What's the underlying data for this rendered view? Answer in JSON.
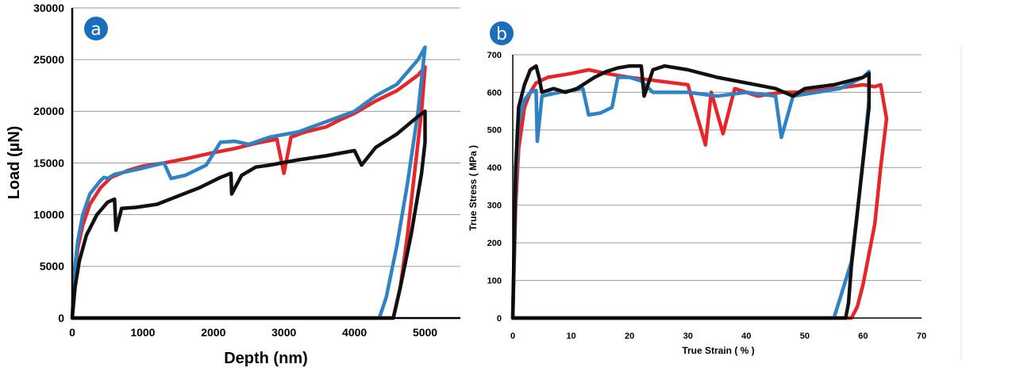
{
  "colors": {
    "black": "#111111",
    "red": "#e8262a",
    "blue": "#2f82c6",
    "badge": "#1a6fbd",
    "grid": "#9a9a9a"
  },
  "chart_data": [
    {
      "type": "line",
      "panel_label": "a",
      "xlabel": "Depth (nm)",
      "ylabel": "Load (µN)",
      "xlim": [
        0,
        5500
      ],
      "ylim": [
        0,
        30000
      ],
      "x_ticks": [
        0,
        1000,
        2000,
        3000,
        4000,
        5000
      ],
      "y_ticks": [
        0,
        5000,
        10000,
        15000,
        20000,
        25000,
        30000
      ],
      "grid": "horizontal",
      "series": [
        {
          "color": "red",
          "points": [
            [
              0,
              0
            ],
            [
              30,
              4000
            ],
            [
              80,
              6800
            ],
            [
              150,
              9000
            ],
            [
              250,
              11000
            ],
            [
              400,
              12600
            ],
            [
              550,
              13600
            ],
            [
              800,
              14300
            ],
            [
              1000,
              14700
            ],
            [
              1300,
              15000
            ],
            [
              1600,
              15400
            ],
            [
              1800,
              15700
            ],
            [
              2000,
              16000
            ],
            [
              2300,
              16400
            ],
            [
              2600,
              16900
            ],
            [
              2900,
              17300
            ],
            [
              3000,
              14000
            ],
            [
              3100,
              17500
            ],
            [
              3300,
              18000
            ],
            [
              3600,
              18500
            ],
            [
              3800,
              19200
            ],
            [
              4000,
              19800
            ],
            [
              4300,
              21000
            ],
            [
              4600,
              22000
            ],
            [
              4900,
              23500
            ],
            [
              5000,
              24300
            ],
            [
              4950,
              20000
            ],
            [
              4850,
              14000
            ],
            [
              4750,
              8000
            ],
            [
              4650,
              3000
            ],
            [
              4550,
              0
            ],
            [
              0,
              0
            ]
          ]
        },
        {
          "color": "blue",
          "points": [
            [
              0,
              0
            ],
            [
              30,
              4500
            ],
            [
              80,
              7500
            ],
            [
              150,
              10000
            ],
            [
              250,
              12000
            ],
            [
              400,
              13300
            ],
            [
              450,
              13600
            ],
            [
              500,
              13500
            ],
            [
              600,
              13900
            ],
            [
              800,
              14200
            ],
            [
              1000,
              14500
            ],
            [
              1300,
              15000
            ],
            [
              1400,
              13500
            ],
            [
              1600,
              13800
            ],
            [
              1900,
              14800
            ],
            [
              2100,
              17000
            ],
            [
              2300,
              17100
            ],
            [
              2500,
              16800
            ],
            [
              2800,
              17500
            ],
            [
              3200,
              18000
            ],
            [
              3600,
              19000
            ],
            [
              4000,
              20000
            ],
            [
              4300,
              21500
            ],
            [
              4600,
              22600
            ],
            [
              4900,
              25000
            ],
            [
              5000,
              26200
            ],
            [
              4900,
              20000
            ],
            [
              4750,
              13000
            ],
            [
              4600,
              7000
            ],
            [
              4450,
              2000
            ],
            [
              4350,
              0
            ],
            [
              0,
              0
            ]
          ]
        },
        {
          "color": "black",
          "points": [
            [
              0,
              0
            ],
            [
              40,
              3000
            ],
            [
              100,
              5500
            ],
            [
              200,
              8000
            ],
            [
              350,
              10000
            ],
            [
              500,
              11200
            ],
            [
              600,
              11500
            ],
            [
              620,
              8500
            ],
            [
              700,
              10600
            ],
            [
              900,
              10700
            ],
            [
              1200,
              11000
            ],
            [
              1500,
              11800
            ],
            [
              1800,
              12600
            ],
            [
              2100,
              13600
            ],
            [
              2250,
              14000
            ],
            [
              2260,
              12000
            ],
            [
              2400,
              13800
            ],
            [
              2600,
              14600
            ],
            [
              2800,
              14800
            ],
            [
              3200,
              15300
            ],
            [
              3600,
              15700
            ],
            [
              4000,
              16200
            ],
            [
              4100,
              14800
            ],
            [
              4300,
              16500
            ],
            [
              4600,
              17800
            ],
            [
              4900,
              19500
            ],
            [
              5000,
              20000
            ],
            [
              5000,
              17000
            ],
            [
              4950,
              14000
            ],
            [
              4800,
              8000
            ],
            [
              4650,
              3000
            ],
            [
              4550,
              0
            ],
            [
              0,
              0
            ]
          ]
        }
      ]
    },
    {
      "type": "line",
      "panel_label": "b",
      "xlabel": "True Strain ( % )",
      "ylabel": "True Stress ( MPa )",
      "xlim": [
        0,
        70
      ],
      "ylim": [
        0,
        700
      ],
      "x_ticks": [
        0,
        10,
        20,
        30,
        40,
        50,
        60,
        70
      ],
      "y_ticks": [
        0,
        100,
        200,
        300,
        400,
        500,
        600,
        700
      ],
      "grid": "horizontal",
      "series": [
        {
          "color": "red",
          "points": [
            [
              0,
              0
            ],
            [
              0.5,
              300
            ],
            [
              1,
              450
            ],
            [
              2,
              560
            ],
            [
              3,
              600
            ],
            [
              4,
              625
            ],
            [
              6,
              640
            ],
            [
              10,
              650
            ],
            [
              13,
              660
            ],
            [
              16,
              650
            ],
            [
              20,
              640
            ],
            [
              25,
              630
            ],
            [
              30,
              620
            ],
            [
              33,
              460
            ],
            [
              34,
              600
            ],
            [
              36,
              490
            ],
            [
              38,
              610
            ],
            [
              42,
              590
            ],
            [
              46,
              600
            ],
            [
              50,
              600
            ],
            [
              55,
              610
            ],
            [
              60,
              620
            ],
            [
              62,
              615
            ],
            [
              63,
              620
            ],
            [
              64,
              530
            ],
            [
              63,
              400
            ],
            [
              62,
              250
            ],
            [
              60,
              90
            ],
            [
              59,
              30
            ],
            [
              58,
              0
            ],
            [
              0,
              0
            ]
          ]
        },
        {
          "color": "blue",
          "points": [
            [
              0,
              0
            ],
            [
              0.5,
              350
            ],
            [
              1,
              520
            ],
            [
              2,
              580
            ],
            [
              3,
              600
            ],
            [
              4,
              605
            ],
            [
              4.2,
              470
            ],
            [
              5,
              590
            ],
            [
              8,
              600
            ],
            [
              10,
              605
            ],
            [
              12,
              610
            ],
            [
              13,
              540
            ],
            [
              15,
              545
            ],
            [
              17,
              560
            ],
            [
              18,
              640
            ],
            [
              20,
              640
            ],
            [
              22,
              630
            ],
            [
              24,
              600
            ],
            [
              30,
              600
            ],
            [
              35,
              590
            ],
            [
              40,
              600
            ],
            [
              45,
              590
            ],
            [
              46,
              480
            ],
            [
              48,
              590
            ],
            [
              52,
              600
            ],
            [
              56,
              610
            ],
            [
              60,
              640
            ],
            [
              61,
              655
            ],
            [
              61,
              580
            ],
            [
              60,
              420
            ],
            [
              59,
              280
            ],
            [
              58,
              150
            ],
            [
              56,
              50
            ],
            [
              55,
              0
            ],
            [
              0,
              0
            ]
          ]
        },
        {
          "color": "black",
          "points": [
            [
              0,
              0
            ],
            [
              0.5,
              400
            ],
            [
              1,
              560
            ],
            [
              2,
              620
            ],
            [
              3,
              660
            ],
            [
              4,
              670
            ],
            [
              4.5,
              640
            ],
            [
              5,
              600
            ],
            [
              7,
              610
            ],
            [
              9,
              600
            ],
            [
              11,
              610
            ],
            [
              12,
              620
            ],
            [
              14,
              640
            ],
            [
              16,
              655
            ],
            [
              18,
              665
            ],
            [
              20,
              670
            ],
            [
              22,
              670
            ],
            [
              22.5,
              590
            ],
            [
              24,
              660
            ],
            [
              26,
              670
            ],
            [
              30,
              660
            ],
            [
              35,
              640
            ],
            [
              40,
              625
            ],
            [
              45,
              610
            ],
            [
              48,
              590
            ],
            [
              50,
              610
            ],
            [
              55,
              620
            ],
            [
              60,
              640
            ],
            [
              61,
              650
            ],
            [
              61,
              560
            ],
            [
              60,
              420
            ],
            [
              59,
              280
            ],
            [
              58,
              140
            ],
            [
              57.5,
              40
            ],
            [
              57,
              0
            ],
            [
              0,
              0
            ]
          ]
        }
      ]
    }
  ]
}
